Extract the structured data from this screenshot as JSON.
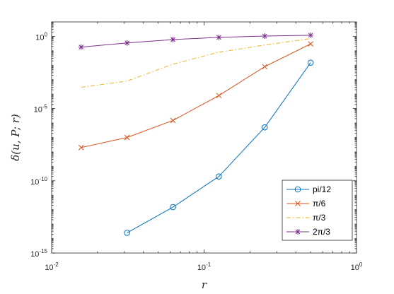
{
  "chart_data": {
    "type": "line",
    "xscale": "log",
    "yscale": "log",
    "xlim": [
      0.01,
      1
    ],
    "ylim": [
      1e-15,
      10
    ],
    "xticks": [
      {
        "value": 0.01,
        "mantissa": "10",
        "exp": "-2"
      },
      {
        "value": 0.1,
        "mantissa": "10",
        "exp": "-1"
      },
      {
        "value": 1,
        "mantissa": "10",
        "exp": "0"
      }
    ],
    "yticks": [
      {
        "value": 1e-15,
        "mantissa": "10",
        "exp": "-15"
      },
      {
        "value": 1e-10,
        "mantissa": "10",
        "exp": "-10"
      },
      {
        "value": 1e-05,
        "mantissa": "10",
        "exp": "-5"
      },
      {
        "value": 1,
        "mantissa": "10",
        "exp": "0"
      }
    ],
    "xlabel": "r",
    "ylabel": "δ(u, P; r)",
    "legend_position": "bottom-right",
    "series": [
      {
        "name": "pi/12",
        "color": "#0072BD",
        "marker": "circle",
        "style": "solid",
        "x": [
          0.03125,
          0.0625,
          0.125,
          0.25,
          0.5
        ],
        "y": [
          2.5e-14,
          1.5e-12,
          2e-10,
          5e-07,
          0.015
        ]
      },
      {
        "name": "π/6",
        "color": "#D95319",
        "marker": "x",
        "style": "solid",
        "x": [
          0.015625,
          0.03125,
          0.0625,
          0.125,
          0.25,
          0.5
        ],
        "y": [
          2e-08,
          1e-07,
          1.5e-06,
          8e-05,
          0.008,
          0.3
        ]
      },
      {
        "name": "π/3",
        "color": "#EDB120",
        "marker": "none",
        "style": "dashdot",
        "x": [
          0.015625,
          0.03125,
          0.0625,
          0.125,
          0.25,
          0.5
        ],
        "y": [
          0.0003,
          0.0008,
          0.012,
          0.08,
          0.25,
          0.7
        ]
      },
      {
        "name": "2π/3",
        "color": "#7E2F8E",
        "marker": "asterisk",
        "style": "solid",
        "x": [
          0.015625,
          0.03125,
          0.0625,
          0.125,
          0.25,
          0.5
        ],
        "y": [
          0.18,
          0.35,
          0.6,
          0.85,
          1.05,
          1.2
        ]
      }
    ]
  }
}
